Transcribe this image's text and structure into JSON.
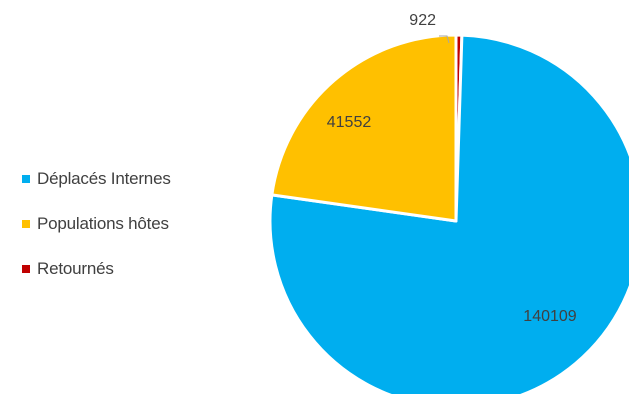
{
  "chart_data": {
    "type": "pie",
    "title": "",
    "legend_position": "left",
    "slices": [
      {
        "label": "Déplacés Internes",
        "value": 140109,
        "color": "#00AEEF"
      },
      {
        "label": "Populations hôtes",
        "value": 41552,
        "color": "#FFC000"
      },
      {
        "label": "Retournés",
        "value": 922,
        "color": "#C00000"
      }
    ]
  }
}
